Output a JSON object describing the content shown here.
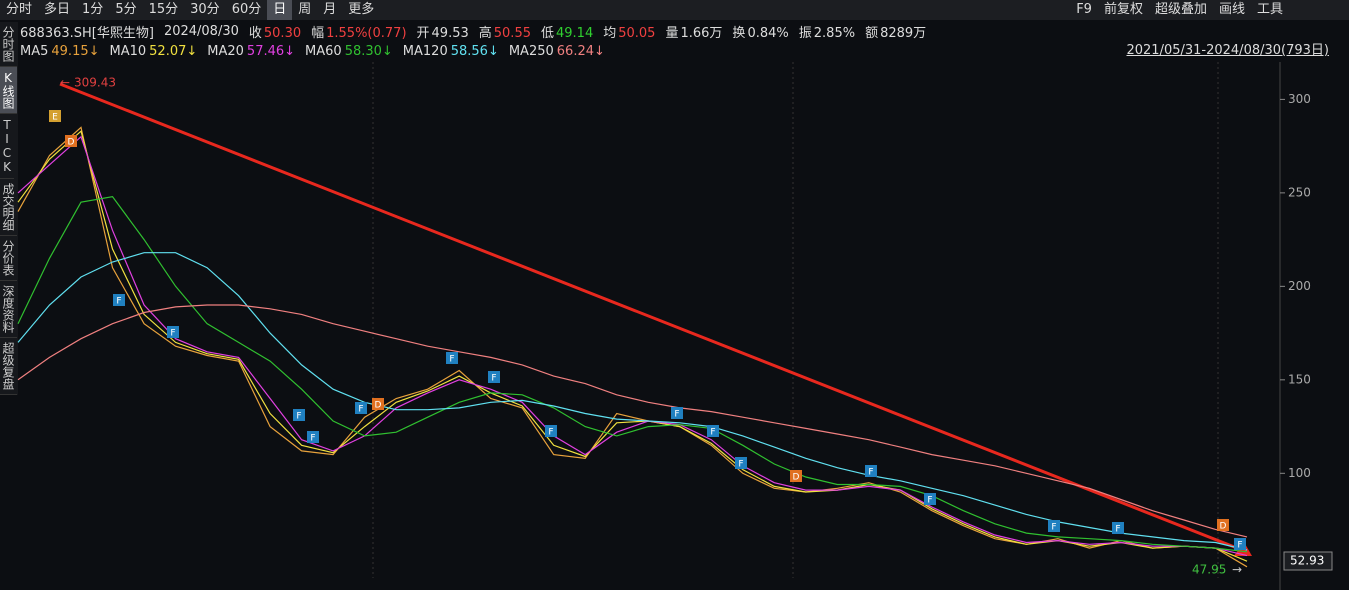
{
  "toolbar": {
    "periods": [
      "分时",
      "多日",
      "1分",
      "5分",
      "15分",
      "30分",
      "60分",
      "日",
      "周",
      "月",
      "更多"
    ],
    "selected": "日",
    "tools": [
      "F9",
      "前复权",
      "超级叠加",
      "画线",
      "工具"
    ]
  },
  "info": {
    "code": "688363.SH[华熙生物]",
    "date": "2024/08/30",
    "fields": [
      {
        "label": "收",
        "value": "50.30"
      },
      {
        "label": "幅",
        "value": "1.55%(0.77)"
      },
      {
        "label": "开",
        "value": "49.53"
      },
      {
        "label": "高",
        "value": "50.55"
      },
      {
        "label": "低",
        "value": "49.14"
      },
      {
        "label": "均",
        "value": "50.05"
      },
      {
        "label": "量",
        "value": "1.66万"
      },
      {
        "label": "换",
        "value": "0.84%"
      },
      {
        "label": "振",
        "value": "2.85%"
      },
      {
        "label": "额",
        "value": "8289万"
      }
    ]
  },
  "range": "2021/05/31-2024/08/30(793日)",
  "side_tabs": [
    "分时图",
    "K线图",
    "TICK",
    "成交明细",
    "分价表",
    "深度资料",
    "超级复盘"
  ],
  "side_selected": "K线图",
  "markers": [
    "E",
    "D",
    "F",
    "F",
    "F",
    "F",
    "F",
    "D",
    "F",
    "F",
    "F",
    "F",
    "F",
    "F",
    "D",
    "F",
    "F",
    "F",
    "F",
    "D",
    "F"
  ],
  "chart_data": {
    "type": "line",
    "ylim": [
      44,
      320
    ],
    "yticks": [
      100,
      150,
      200,
      250,
      300
    ],
    "grid": false,
    "annotations": {
      "high": "309.43",
      "low": "47.95",
      "last": "52.93"
    },
    "series": [
      {
        "name": "MA5",
        "latest": "49.15↓",
        "color": "#e8a23c",
        "values": [
          240,
          270,
          285,
          210,
          180,
          168,
          163,
          160,
          125,
          112,
          110,
          130,
          140,
          145,
          155,
          140,
          135,
          110,
          108,
          132,
          128,
          125,
          115,
          100,
          92,
          90,
          92,
          95,
          90,
          80,
          72,
          65,
          62,
          65,
          60,
          64,
          60,
          61,
          60,
          50
        ]
      },
      {
        "name": "MA10",
        "latest": "52.07↓",
        "color": "#f0e040",
        "values": [
          245,
          268,
          283,
          220,
          185,
          170,
          164,
          161,
          132,
          115,
          111,
          125,
          138,
          144,
          152,
          143,
          136,
          115,
          109,
          127,
          128,
          125,
          116,
          102,
          93,
          90,
          91,
          94,
          91,
          81,
          73,
          66,
          62,
          64,
          61,
          63,
          60,
          61,
          60,
          53
        ]
      },
      {
        "name": "MA20",
        "latest": "57.46↓",
        "color": "#e040e0",
        "values": [
          250,
          265,
          280,
          230,
          190,
          172,
          165,
          162,
          140,
          118,
          112,
          120,
          135,
          143,
          150,
          145,
          138,
          120,
          110,
          122,
          128,
          126,
          118,
          104,
          95,
          91,
          91,
          93,
          91,
          82,
          74,
          67,
          63,
          64,
          62,
          63,
          61,
          61,
          60,
          56
        ]
      },
      {
        "name": "MA60",
        "latest": "58.30↓",
        "color": "#30c030",
        "values": [
          180,
          215,
          245,
          248,
          225,
          200,
          180,
          170,
          160,
          145,
          128,
          120,
          122,
          130,
          138,
          143,
          142,
          135,
          125,
          120,
          125,
          126,
          124,
          115,
          105,
          98,
          94,
          94,
          93,
          88,
          80,
          73,
          68,
          66,
          65,
          64,
          62,
          61,
          60,
          58
        ]
      },
      {
        "name": "MA120",
        "latest": "58.56↓",
        "color": "#60e0f0",
        "values": [
          170,
          190,
          205,
          213,
          218,
          218,
          210,
          195,
          175,
          158,
          145,
          138,
          134,
          134,
          135,
          138,
          139,
          136,
          132,
          129,
          128,
          127,
          125,
          120,
          114,
          108,
          103,
          99,
          96,
          92,
          88,
          83,
          78,
          74,
          71,
          68,
          66,
          64,
          63,
          59
        ]
      },
      {
        "name": "MA250",
        "latest": "66.24↓",
        "color": "#f08080",
        "values": [
          150,
          162,
          172,
          180,
          186,
          189,
          190,
          190,
          188,
          185,
          180,
          176,
          172,
          168,
          165,
          162,
          158,
          152,
          148,
          142,
          138,
          135,
          133,
          130,
          127,
          124,
          121,
          118,
          114,
          110,
          107,
          104,
          100,
          96,
          92,
          86,
          80,
          75,
          70,
          66
        ]
      }
    ]
  }
}
